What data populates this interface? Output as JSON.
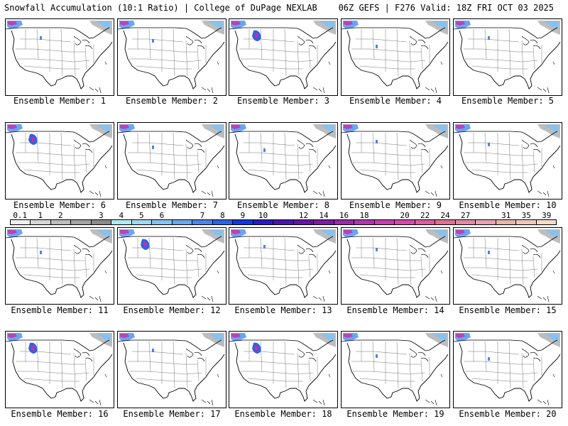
{
  "header": {
    "left": "Snowfall Accumulation (10:1 Ratio) | College of DuPage NEXLAB",
    "right": "06Z GEFS | F276 Valid: 18Z FRI OCT 03 2025"
  },
  "panels": [
    {
      "label": "Ensemble Member: 1"
    },
    {
      "label": "Ensemble Member: 2"
    },
    {
      "label": "Ensemble Member: 3"
    },
    {
      "label": "Ensemble Member: 4"
    },
    {
      "label": "Ensemble Member: 5"
    },
    {
      "label": "Ensemble Member: 6"
    },
    {
      "label": "Ensemble Member: 7"
    },
    {
      "label": "Ensemble Member: 8"
    },
    {
      "label": "Ensemble Member: 9"
    },
    {
      "label": "Ensemble Member: 10"
    },
    {
      "label": "Ensemble Member: 11"
    },
    {
      "label": "Ensemble Member: 12"
    },
    {
      "label": "Ensemble Member: 13"
    },
    {
      "label": "Ensemble Member: 14"
    },
    {
      "label": "Ensemble Member: 15"
    },
    {
      "label": "Ensemble Member: 16"
    },
    {
      "label": "Ensemble Member: 17"
    },
    {
      "label": "Ensemble Member: 18"
    },
    {
      "label": "Ensemble Member: 19"
    },
    {
      "label": "Ensemble Member: 20"
    }
  ],
  "legend": {
    "ticks": [
      "0.1",
      "1",
      "2",
      "3",
      "4",
      "5",
      "6",
      "7",
      "8",
      "9",
      "10",
      "12",
      "14",
      "16",
      "18",
      "20",
      "22",
      "24",
      "27",
      "31",
      "35",
      "39"
    ],
    "colors": [
      "#eeeeee",
      "#d6d6d6",
      "#bdbdbd",
      "#a3a3a3",
      "#8a8a8a",
      "#b0e8f0",
      "#9fd7f4",
      "#86c2f0",
      "#6aa6ee",
      "#4a86ea",
      "#2c63e6",
      "#1038e0",
      "#2a1cc4",
      "#4a14b4",
      "#6612a8",
      "#7c1aa4",
      "#9a2aa8",
      "#b434b0",
      "#c83cb4",
      "#d848aa",
      "#e05aa0",
      "#e07090",
      "#e28aa0",
      "#e8a0b4",
      "#eab4a8",
      "#f0c8b8",
      "#f6dcc8"
    ]
  }
}
